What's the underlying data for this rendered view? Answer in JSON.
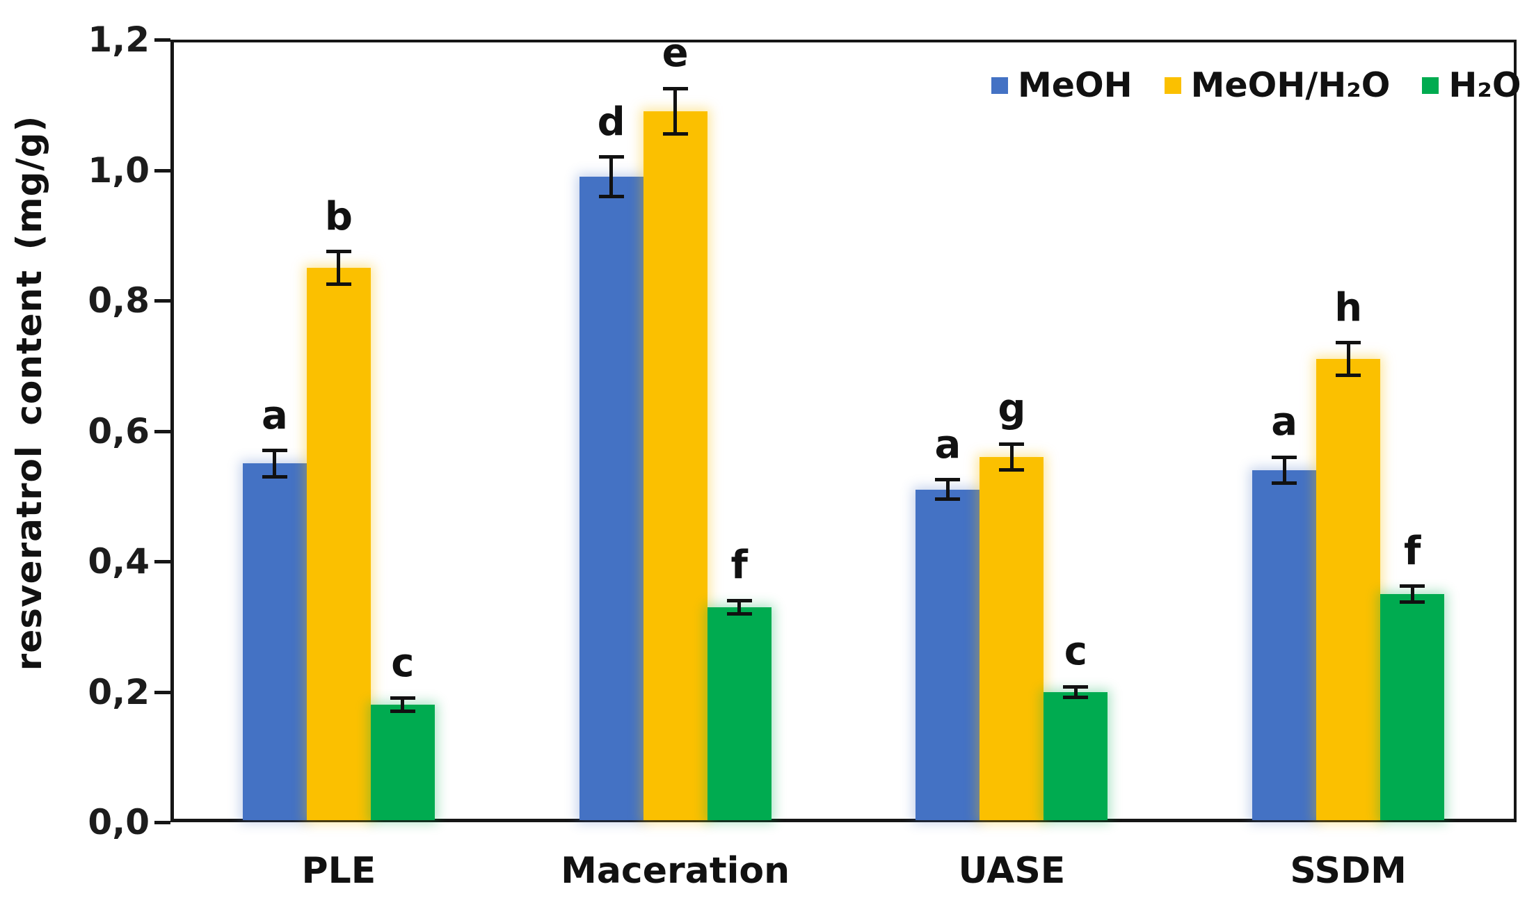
{
  "chart_data": {
    "type": "bar",
    "title": "",
    "xlabel": "",
    "ylabel": "resveratrol content (mg/g)",
    "ylim": [
      0,
      1.2
    ],
    "grid": false,
    "legend_position": "top-right",
    "y_ticks": [
      {
        "label": "1,2",
        "value": 1.2
      },
      {
        "label": "1,0",
        "value": 1.0
      },
      {
        "label": "0,8",
        "value": 0.8
      },
      {
        "label": "0,6",
        "value": 0.6
      },
      {
        "label": "0,4",
        "value": 0.4
      },
      {
        "label": "0,2",
        "value": 0.2
      },
      {
        "label": "0,0",
        "value": 0.0
      }
    ],
    "categories": [
      "PLE",
      "Maceration",
      "UASE",
      "SSDM"
    ],
    "series": [
      {
        "name": "MeOH",
        "color": "#4472C4",
        "glow": "rgba(68,114,196,0.30)",
        "values": [
          0.55,
          0.99,
          0.51,
          0.54
        ],
        "errors": [
          0.02,
          0.03,
          0.015,
          0.02
        ],
        "letters": [
          "a",
          "d",
          "a",
          "a"
        ]
      },
      {
        "name": "MeOH/H₂O",
        "color": "#FBC000",
        "glow": "rgba(251,192,0,0.38)",
        "values": [
          0.85,
          1.09,
          0.56,
          0.71
        ],
        "errors": [
          0.025,
          0.035,
          0.02,
          0.025
        ],
        "letters": [
          "b",
          "e",
          "g",
          "h"
        ]
      },
      {
        "name": "H₂O",
        "color": "#00AB50",
        "glow": "rgba(0,171,80,0.32)",
        "values": [
          0.18,
          0.33,
          0.2,
          0.35
        ],
        "errors": [
          0.01,
          0.01,
          0.008,
          0.012
        ],
        "letters": [
          "c",
          "f",
          "c",
          "f"
        ]
      }
    ]
  }
}
